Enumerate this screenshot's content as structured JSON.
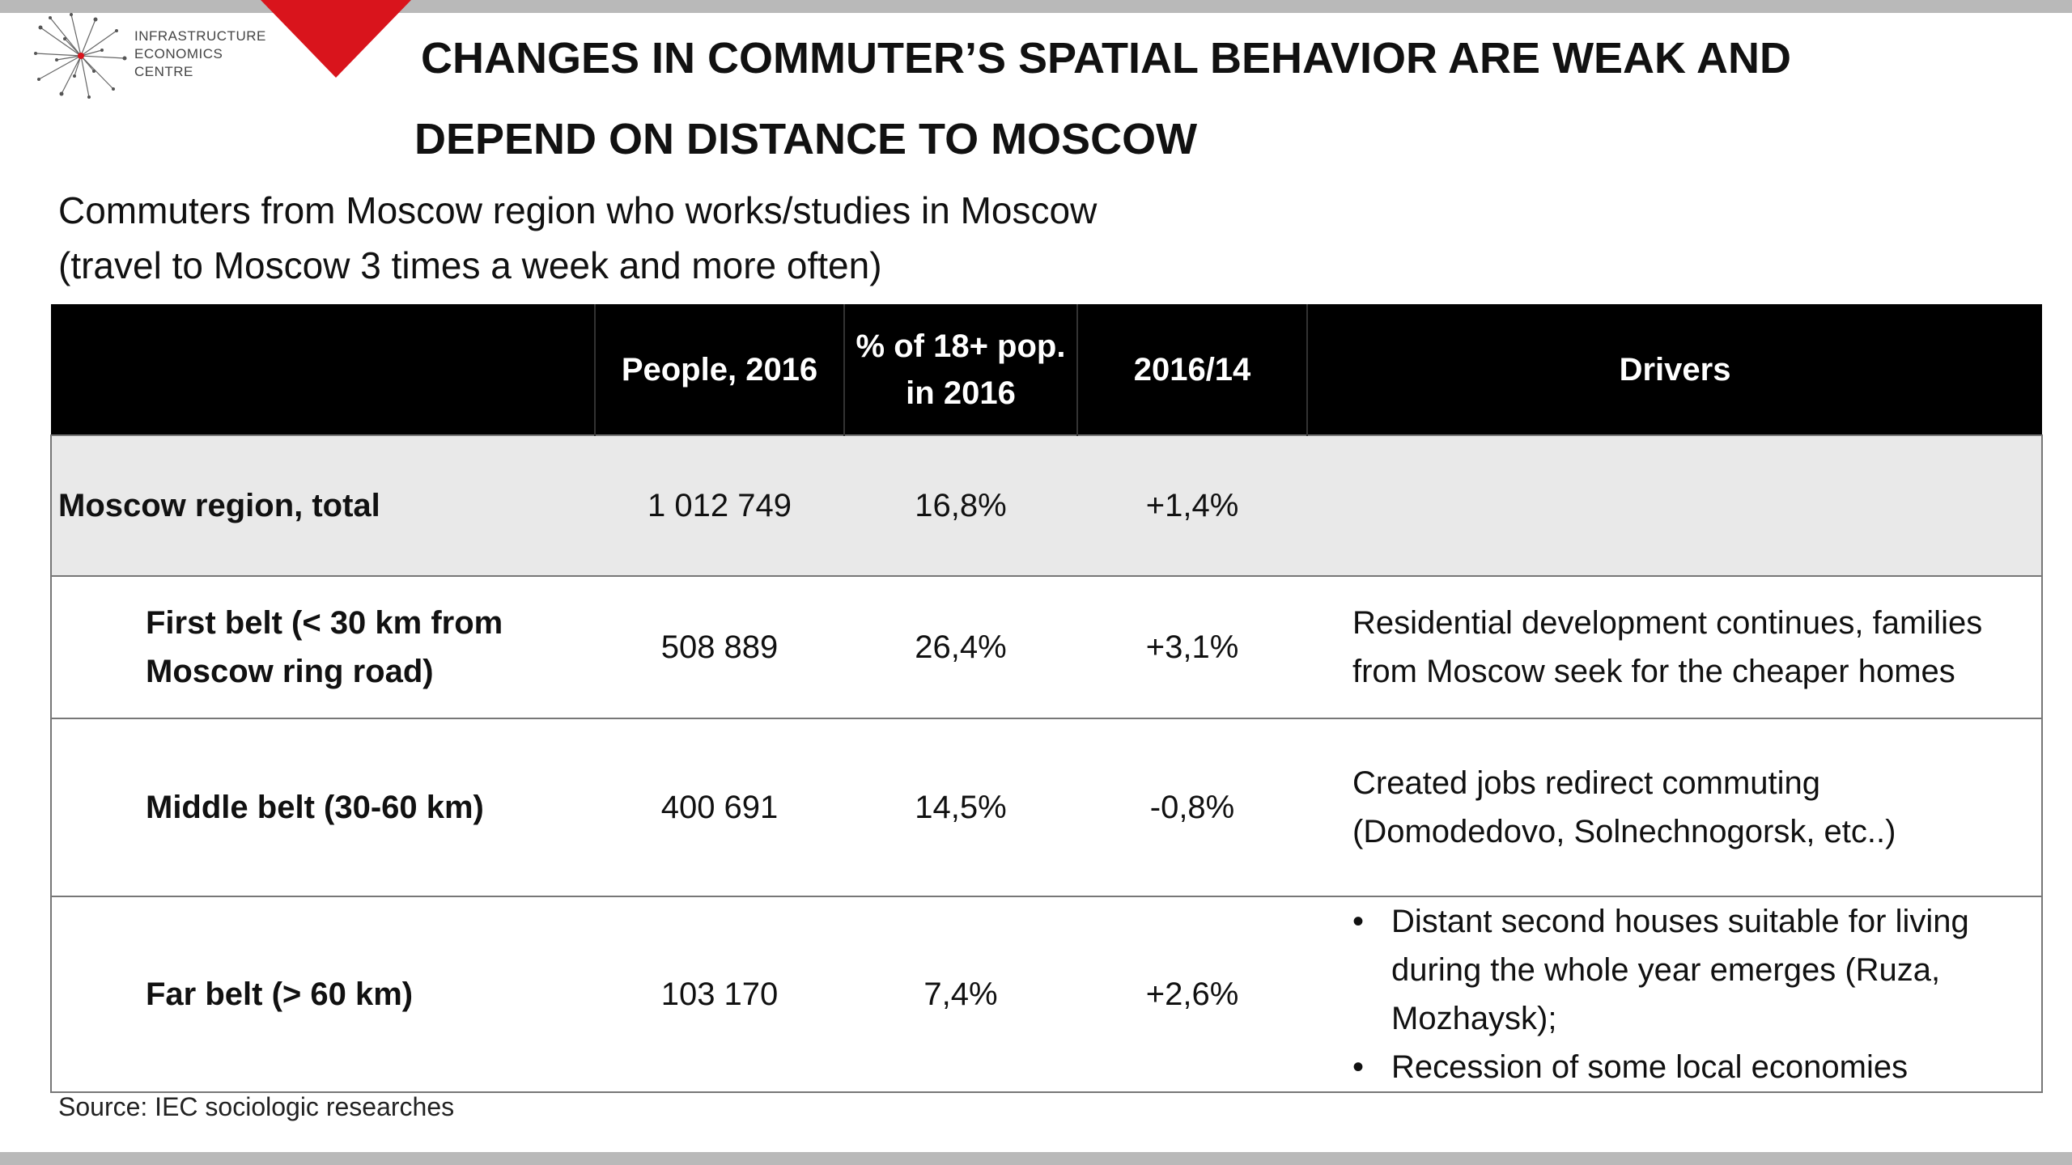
{
  "logo": {
    "lines": [
      "INFRASTRUCTURE",
      "ECONOMICS",
      "CENTRE"
    ]
  },
  "title": {
    "line1": "CHANGES IN  COMMUTER’S SPATIAL BEHAVIOR ARE WEAK AND",
    "line2": "DEPEND ON DISTANCE TO MOSCOW"
  },
  "subtitle": {
    "line1": "Commuters from Moscow region who works/studies  in Moscow",
    "line2": "(travel to Moscow 3 times a week and more often)"
  },
  "table": {
    "headers": [
      "",
      "People,  2016",
      "% of 18+ pop. in 2016",
      "2016/14",
      "Drivers"
    ],
    "rows": [
      {
        "label": "Moscow region, total",
        "people": "1 012 749",
        "share": "16,8%",
        "change": "+1,4%",
        "drivers": ""
      },
      {
        "label": "First belt (< 30 km from Moscow ring road)",
        "people": "508 889",
        "share": "26,4%",
        "change": "+3,1%",
        "drivers": "Residential development continues, families from Moscow seek for the cheaper homes"
      },
      {
        "label": "Middle belt (30-60 km)",
        "people": "400 691",
        "share": "14,5%",
        "change": "-0,8%",
        "drivers": "Created jobs redirect commuting (Domodedovo, Solnechnogorsk, etc..)"
      },
      {
        "label": "Far belt (> 60 km)",
        "people": "103 170",
        "share": "7,4%",
        "change": "+2,6%",
        "drivers_bullets": [
          "Distant second houses suitable for living during the whole year emerges (Ruza, Mozhaysk);",
          "Recession of some local economies"
        ]
      }
    ]
  },
  "source": "Source: IEC sociologic researches",
  "colors": {
    "accent_red": "#d9141c",
    "header_bg": "#000000",
    "total_row_bg": "#e9e9e9",
    "frame_grey": "#b9b9b9"
  }
}
